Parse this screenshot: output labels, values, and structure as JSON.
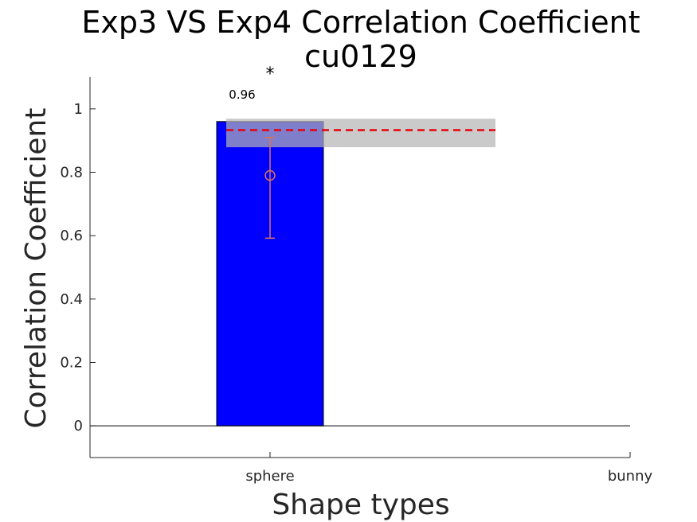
{
  "chart_data": {
    "type": "bar",
    "title": "Exp3 VS Exp4 Correlation Coefficient",
    "subtitle": "cu0129",
    "xlabel": "Shape types",
    "ylabel": "Correlation Coefficient",
    "categories": [
      "sphere",
      "bunny"
    ],
    "values": [
      0.96,
      null
    ],
    "value_labels": [
      "0.96",
      ""
    ],
    "significance_marker": "*",
    "ylim": [
      -0.1,
      1.1
    ],
    "yticks": [
      0,
      0.2,
      0.4,
      0.6,
      0.8,
      1
    ],
    "ytick_labels": [
      "0",
      "0.2",
      "0.4",
      "0.6",
      "0.8",
      "1"
    ],
    "reference_line": {
      "value": 0.933,
      "band": [
        0.879,
        0.969
      ],
      "x_range": [
        -0.5,
        0.5
      ],
      "style": "dashed",
      "color": "#e8000b"
    },
    "point_estimate": {
      "category": "sphere",
      "value": 0.79,
      "error_low": 0.592,
      "error_high": 0.91
    },
    "grid": false,
    "colors": {
      "bar": "#0000ff",
      "band": "#b3b3b3",
      "marker": "#d9735a",
      "axis": "#262626"
    }
  }
}
